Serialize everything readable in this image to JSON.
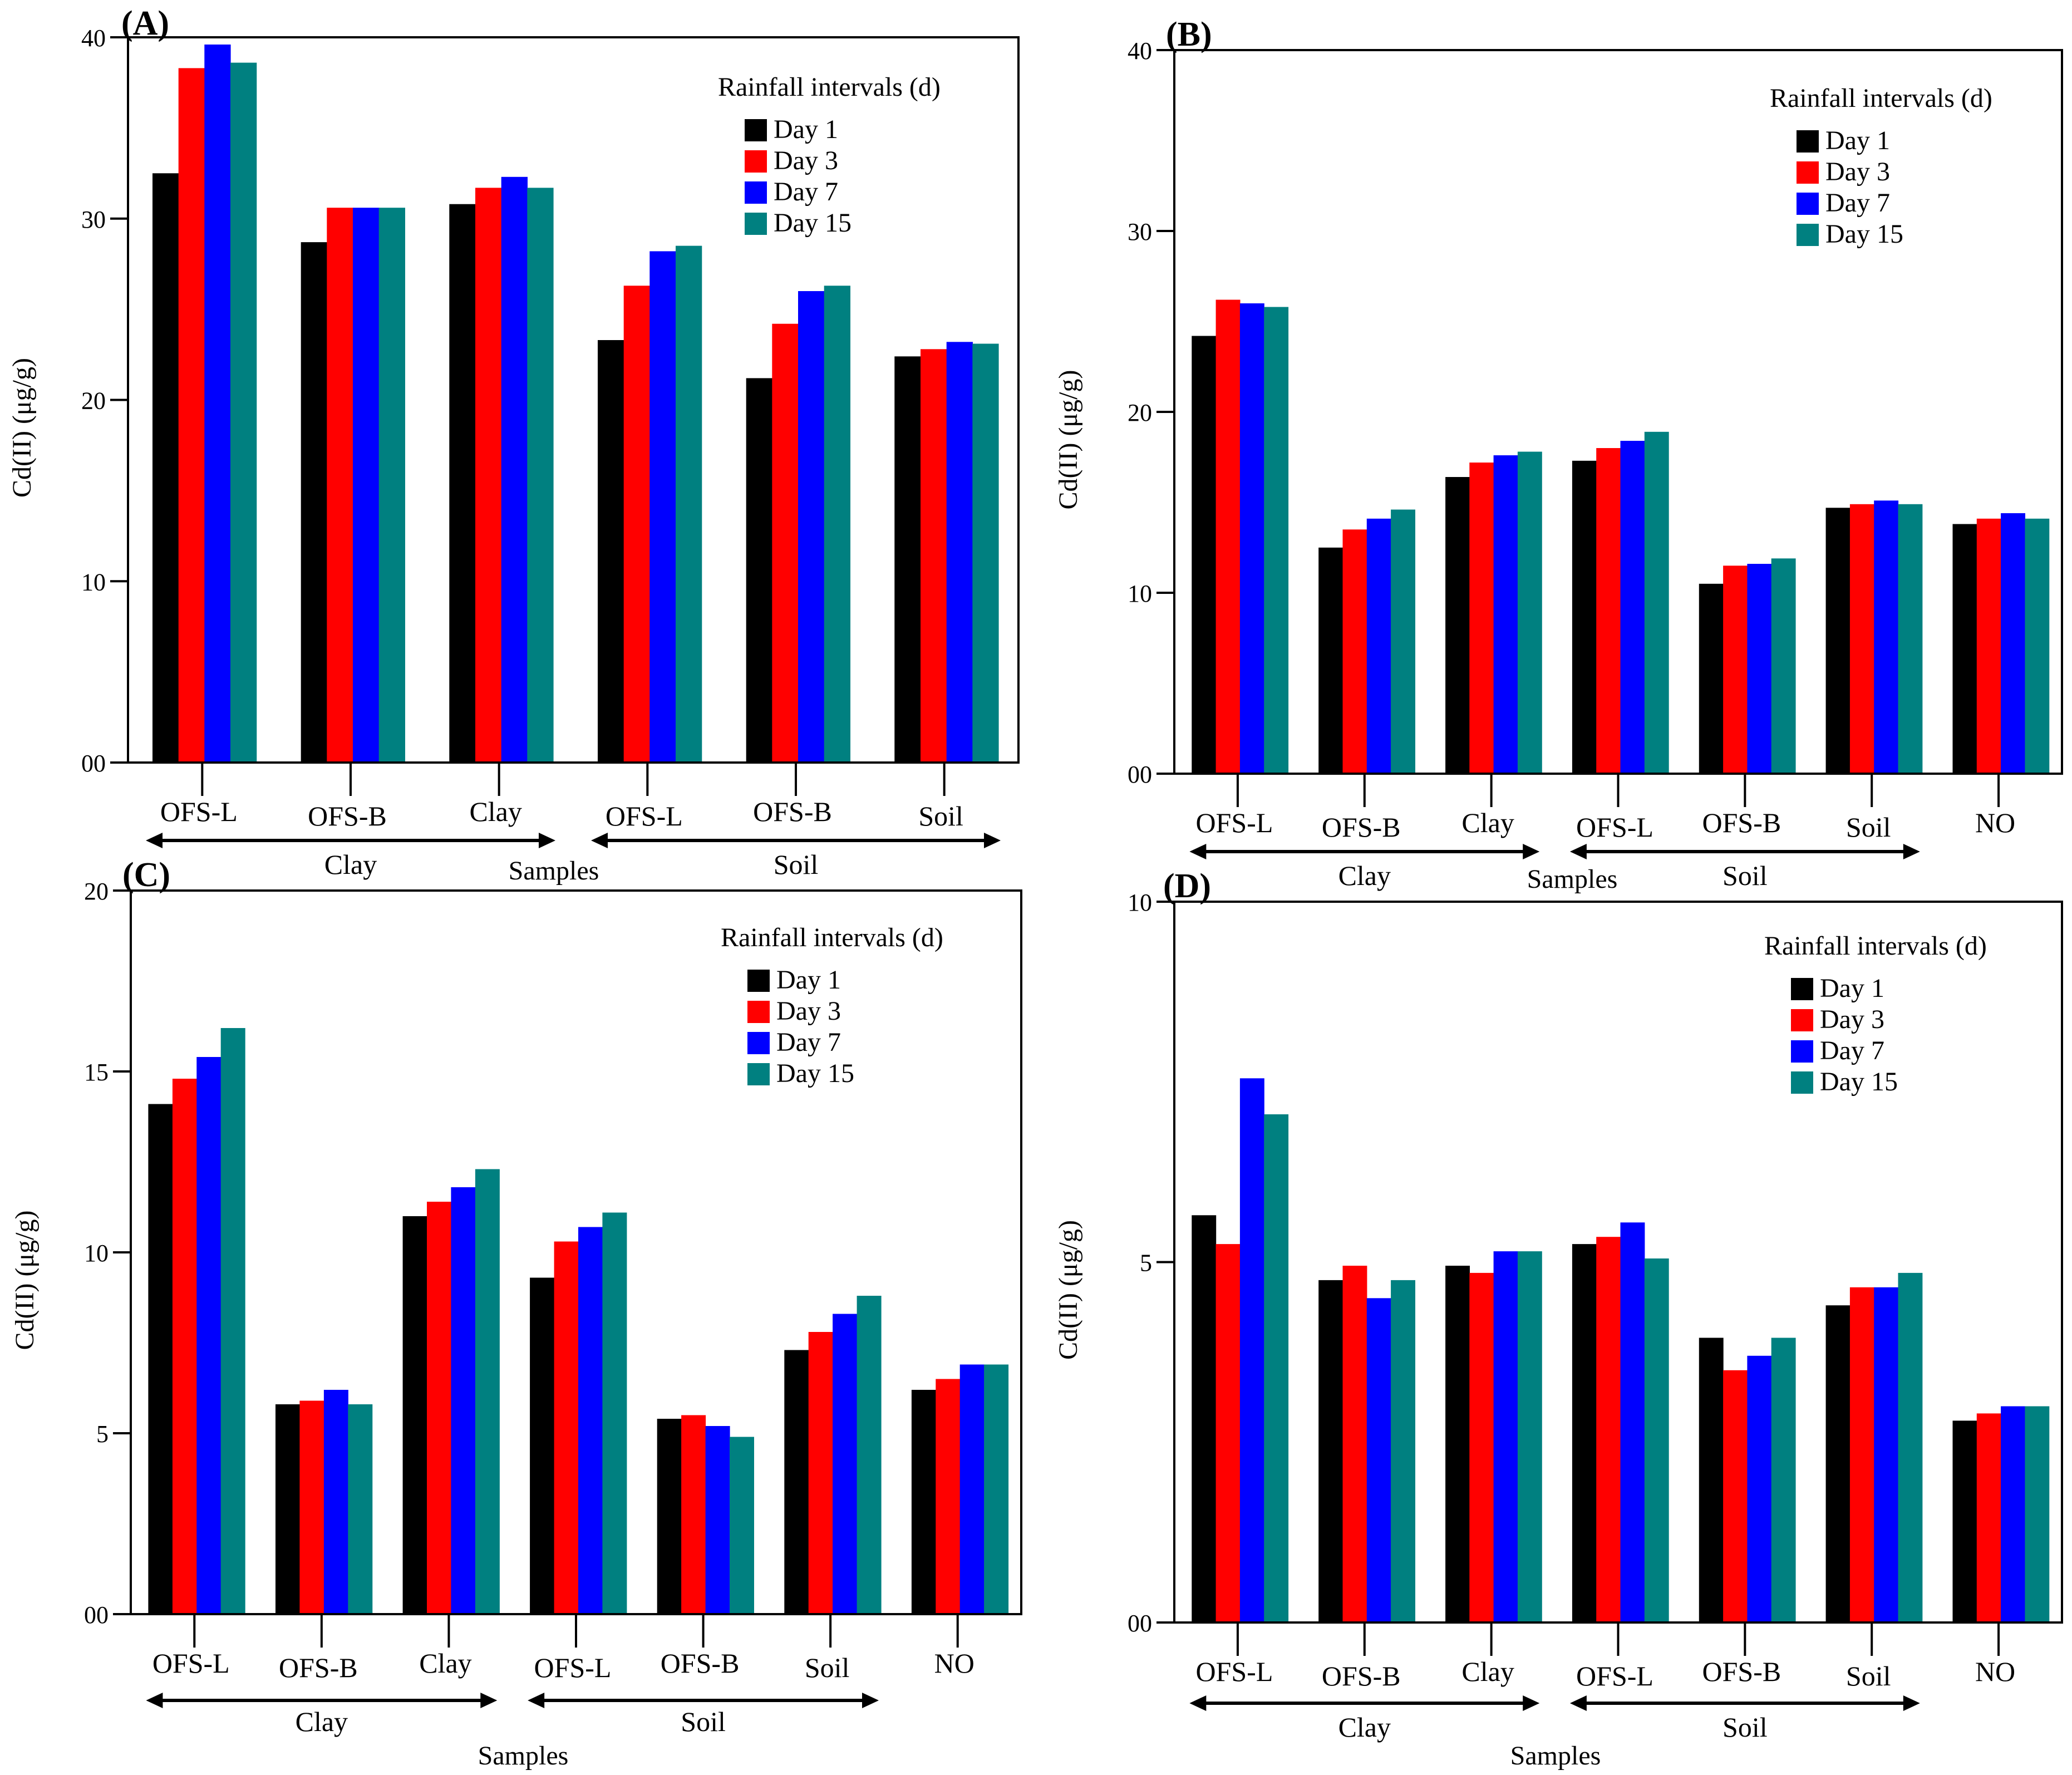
{
  "legend_title": "Rainfall intervals (d)",
  "colors": {
    "Day 1": "#000000",
    "Day 3": "#ff0000",
    "Day 7": "#0000ff",
    "Day 15": "#008080"
  },
  "chart_data": [
    {
      "panel": "(A)",
      "type": "bar",
      "ylabel": "Cd(II) (μg/g)",
      "xlabel": "Samples",
      "ylim": [
        0,
        40
      ],
      "yticks": [
        0,
        10,
        20,
        30,
        40
      ],
      "ytick_labels": [
        "00",
        "10",
        "20",
        "30",
        "40"
      ],
      "categories": [
        "OFS-L",
        "OFS-B",
        "Clay",
        "OFS-L",
        "OFS-B",
        "Soil"
      ],
      "groups": [
        {
          "label": "Clay",
          "from": 0,
          "to": 2
        },
        {
          "label": "Soil",
          "from": 3,
          "to": 5
        }
      ],
      "series": [
        {
          "name": "Day 1",
          "values": [
            32.5,
            28.7,
            30.8,
            23.3,
            21.2,
            22.4
          ]
        },
        {
          "name": "Day 3",
          "values": [
            38.3,
            30.6,
            31.7,
            26.3,
            24.2,
            22.8
          ]
        },
        {
          "name": "Day 7",
          "values": [
            39.6,
            30.6,
            32.3,
            28.2,
            26.0,
            23.2
          ]
        },
        {
          "name": "Day 15",
          "values": [
            38.6,
            30.6,
            31.7,
            28.5,
            26.3,
            23.1
          ]
        }
      ]
    },
    {
      "panel": "(B)",
      "type": "bar",
      "ylabel": "Cd(II) (μg/g)",
      "xlabel": "Samples",
      "ylim": [
        0,
        40
      ],
      "yticks": [
        0,
        10,
        20,
        30,
        40
      ],
      "ytick_labels": [
        "00",
        "10",
        "20",
        "30",
        "40"
      ],
      "categories": [
        "OFS-L",
        "OFS-B",
        "Clay",
        "OFS-L",
        "OFS-B",
        "Soil",
        "NO"
      ],
      "groups": [
        {
          "label": "Clay",
          "from": 0,
          "to": 2
        },
        {
          "label": "Soil",
          "from": 3,
          "to": 5
        }
      ],
      "series": [
        {
          "name": "Day 1",
          "values": [
            24.2,
            12.5,
            16.4,
            17.3,
            10.5,
            14.7,
            13.8
          ]
        },
        {
          "name": "Day 3",
          "values": [
            26.2,
            13.5,
            17.2,
            18.0,
            11.5,
            14.9,
            14.1
          ]
        },
        {
          "name": "Day 7",
          "values": [
            26.0,
            14.1,
            17.6,
            18.4,
            11.6,
            15.1,
            14.4
          ]
        },
        {
          "name": "Day 15",
          "values": [
            25.8,
            14.6,
            17.8,
            18.9,
            11.9,
            14.9,
            14.1
          ]
        }
      ]
    },
    {
      "panel": "(C)",
      "type": "bar",
      "ylabel": "Cd(II) (μg/g)",
      "xlabel": "Samples",
      "ylim": [
        0,
        20
      ],
      "yticks": [
        0,
        5,
        10,
        15,
        20
      ],
      "ytick_labels": [
        "00",
        "5",
        "10",
        "15",
        "20"
      ],
      "categories": [
        "OFS-L",
        "OFS-B",
        "Clay",
        "OFS-L",
        "OFS-B",
        "Soil",
        "NO"
      ],
      "groups": [
        {
          "label": "Clay",
          "from": 0,
          "to": 2
        },
        {
          "label": "Soil",
          "from": 3,
          "to": 5
        }
      ],
      "series": [
        {
          "name": "Day 1",
          "values": [
            14.1,
            5.8,
            11.0,
            9.3,
            5.4,
            7.3,
            6.2
          ]
        },
        {
          "name": "Day 3",
          "values": [
            14.8,
            5.9,
            11.4,
            10.3,
            5.5,
            7.8,
            6.5
          ]
        },
        {
          "name": "Day 7",
          "values": [
            15.4,
            6.2,
            11.8,
            10.7,
            5.2,
            8.3,
            6.9
          ]
        },
        {
          "name": "Day 15",
          "values": [
            16.2,
            5.8,
            12.3,
            11.1,
            4.9,
            8.8,
            6.9
          ]
        }
      ]
    },
    {
      "panel": "(D)",
      "type": "bar",
      "ylabel": "Cd(II) (μg/g)",
      "xlabel": "Samples",
      "ylim": [
        0,
        10
      ],
      "yticks": [
        0,
        5,
        10
      ],
      "ytick_labels": [
        "00",
        "5",
        "10"
      ],
      "categories": [
        "OFS-L",
        "OFS-B",
        "Clay",
        "OFS-L",
        "OFS-B",
        "Soil",
        "NO"
      ],
      "groups": [
        {
          "label": "Clay",
          "from": 0,
          "to": 2
        },
        {
          "label": "Soil",
          "from": 3,
          "to": 5
        }
      ],
      "series": [
        {
          "name": "Day 1",
          "values": [
            5.65,
            4.75,
            4.95,
            5.25,
            3.95,
            4.4,
            2.8
          ]
        },
        {
          "name": "Day 3",
          "values": [
            5.25,
            4.95,
            4.85,
            5.35,
            3.5,
            4.65,
            2.9
          ]
        },
        {
          "name": "Day 7",
          "values": [
            7.55,
            4.5,
            5.15,
            5.55,
            3.7,
            4.65,
            3.0
          ]
        },
        {
          "name": "Day 15",
          "values": [
            7.05,
            4.75,
            5.15,
            5.05,
            3.95,
            4.85,
            3.0
          ]
        }
      ]
    }
  ]
}
